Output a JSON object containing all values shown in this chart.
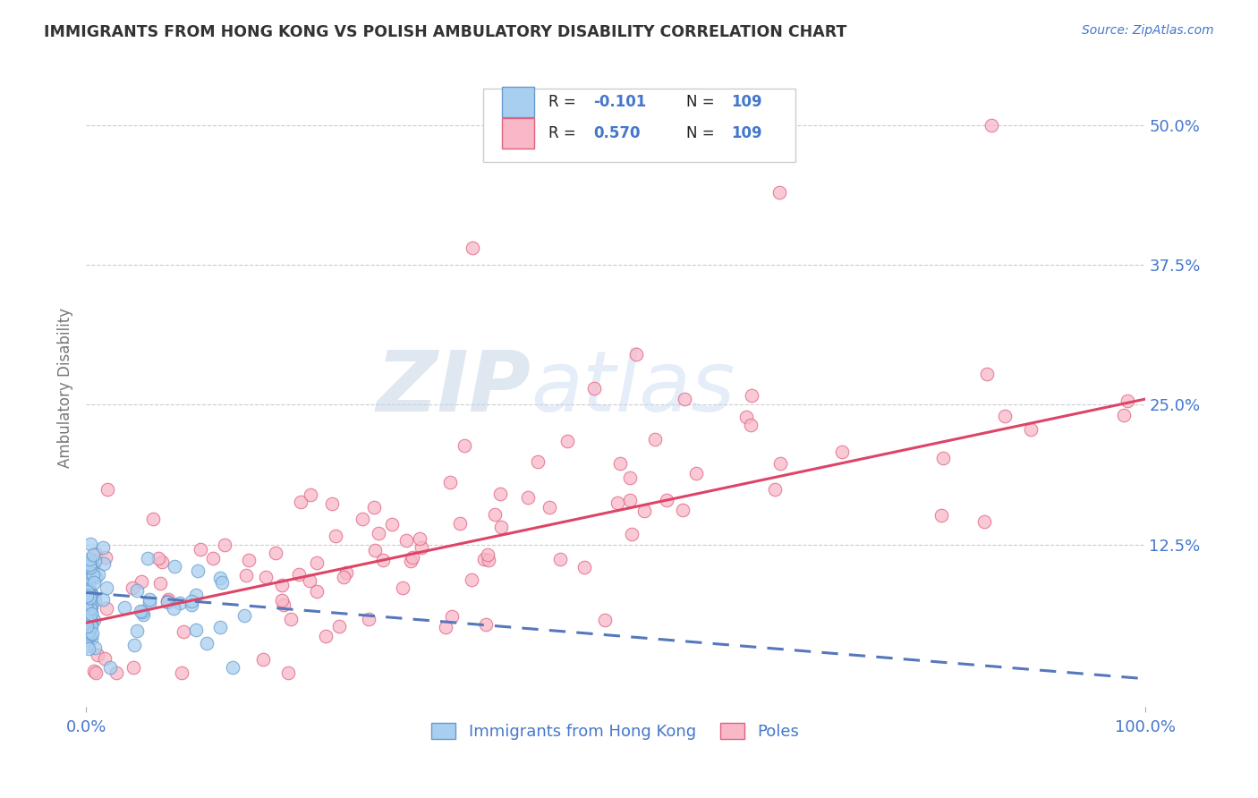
{
  "title": "IMMIGRANTS FROM HONG KONG VS POLISH AMBULATORY DISABILITY CORRELATION CHART",
  "source": "Source: ZipAtlas.com",
  "ylabel": "Ambulatory Disability",
  "right_yticklabels": [
    "",
    "12.5%",
    "25.0%",
    "37.5%",
    "50.0%"
  ],
  "right_ytick_vals": [
    0.0,
    0.125,
    0.25,
    0.375,
    0.5
  ],
  "color_blue_fill": "#a8cff0",
  "color_blue_edge": "#6699cc",
  "color_pink_fill": "#f8b8c8",
  "color_pink_edge": "#e06080",
  "color_blue_line": "#5577bb",
  "color_pink_line": "#dd4466",
  "color_tick": "#4477cc",
  "title_color": "#333333",
  "background_color": "#ffffff",
  "grid_color": "#cccccc",
  "watermark_zip": "#c8d8e8",
  "watermark_atlas": "#c8d8f0",
  "xlim": [
    0.0,
    1.0
  ],
  "ylim": [
    -0.02,
    0.55
  ],
  "blue_line_y0": 0.082,
  "blue_line_y1": 0.005,
  "pink_line_y0": 0.055,
  "pink_line_y1": 0.255
}
